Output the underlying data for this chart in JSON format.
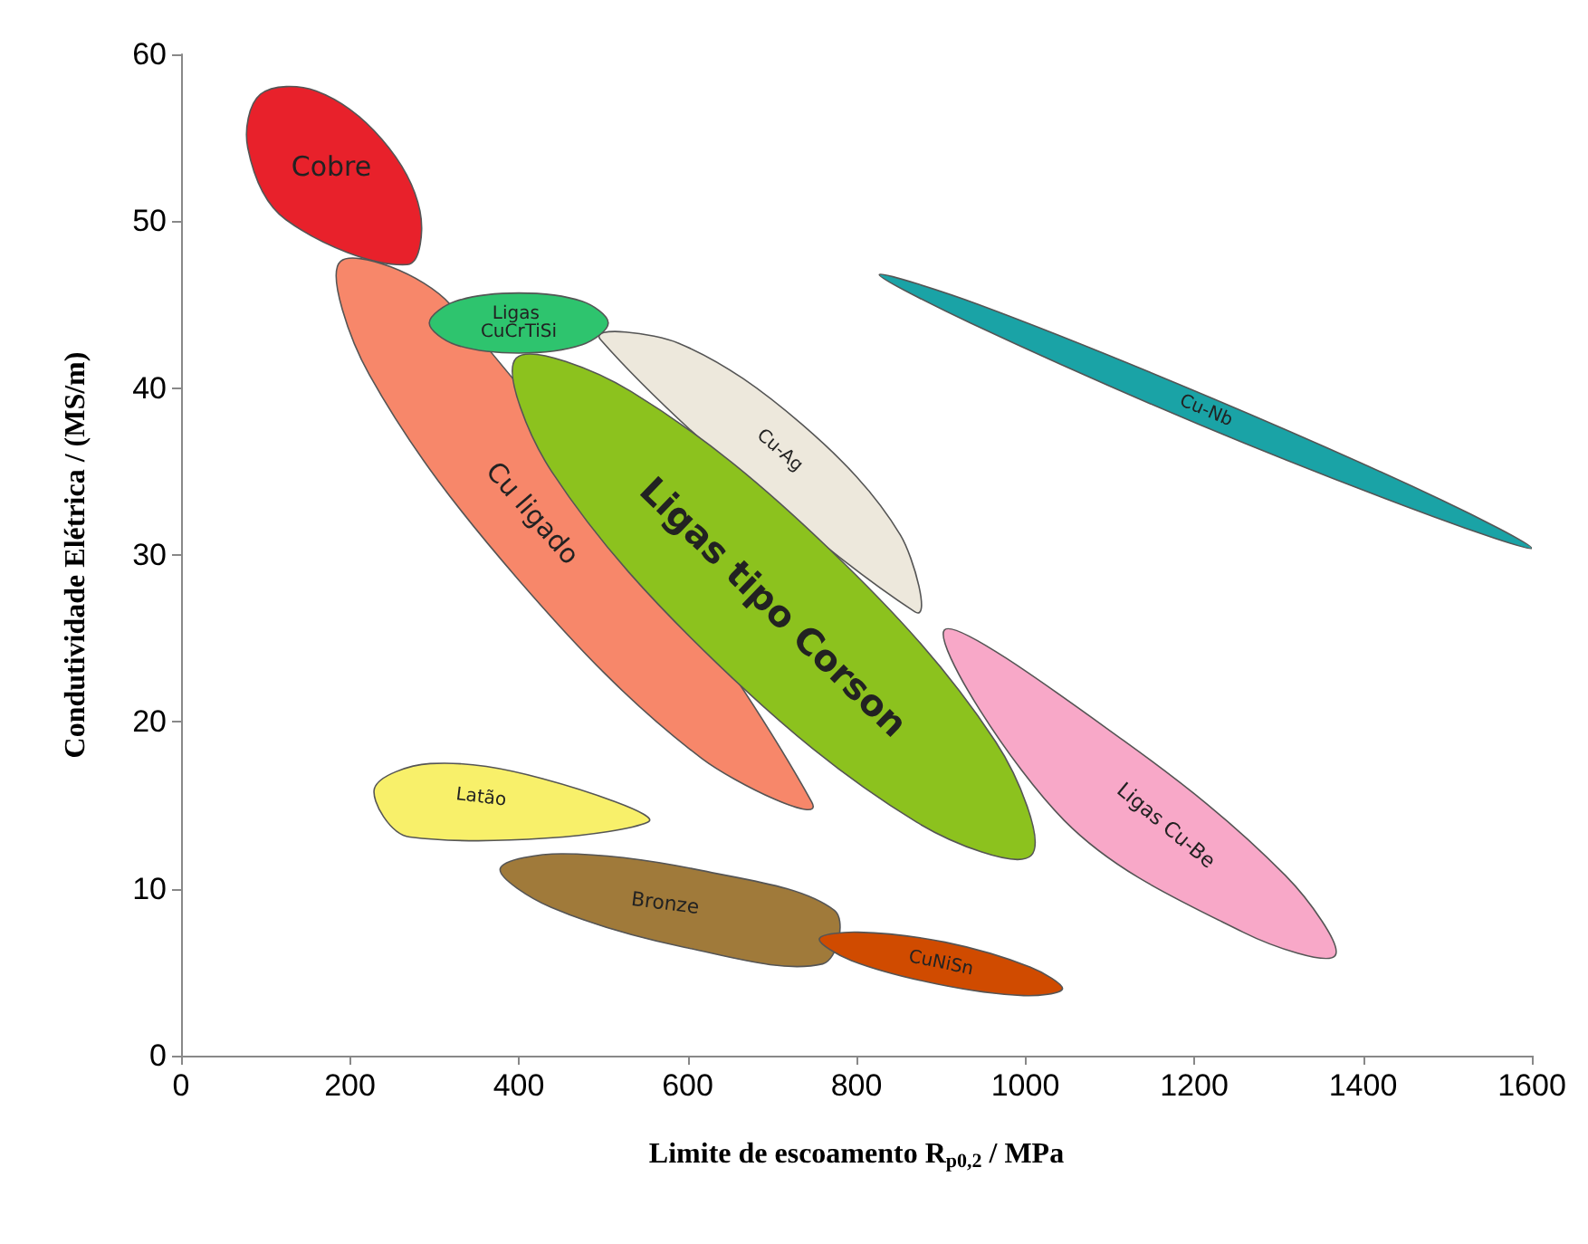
{
  "chart_data": {
    "type": "area",
    "xlabel": "Limite de escoamento R$_{p0,2}$ / MPa",
    "ylabel": "Condutividade Elétrica / (MS/m)",
    "xlim": [
      0,
      1600
    ],
    "xticks": [
      0,
      200,
      400,
      600,
      800,
      1000,
      1200,
      1400,
      1600
    ],
    "ylim": [
      0,
      60
    ],
    "yticks": [
      0,
      10,
      20,
      30,
      40,
      50,
      60
    ],
    "grid": false,
    "legend": false,
    "series": [
      {
        "name": "Cobre",
        "color": "#e8212b",
        "x": [
          94,
          160,
          238,
          283,
          268,
          null,
          124,
          79
        ],
        "values": [
          57.6,
          57.8,
          54.9,
          50.6,
          47.4,
          null,
          50.1,
          54.4
        ]
      },
      {
        "name": "Cu ligado",
        "color": "#f7876a",
        "x": [
          189,
          319,
          null,
          null,
          747,
          617,
          400,
          223
        ],
        "values": [
          47.6,
          45.0,
          null,
          null,
          15.2,
          17.8,
          28.5,
          40.8
        ]
      },
      {
        "name": "Ligas Cu-Be",
        "color": "#f8a8c8",
        "x": [
          null,
          904,
          1116,
          1308,
          1367,
          1258,
          1046,
          null
        ],
        "values": [
          null,
          25.5,
          18.9,
          10.8,
          6.0,
          7.4,
          14.1,
          null
        ]
      },
      {
        "name": "Cu-Ag",
        "color": "#ede8dc",
        "x": [
          497,
          589,
          736,
          852,
          869,
          null,
          null,
          null
        ],
        "values": [
          42.9,
          42.7,
          37.8,
          31.2,
          26.6,
          null,
          null,
          null
        ]
      },
      {
        "name": "Ligas tipo Corson",
        "color": "#8cc21e",
        "x": [
          397,
          533,
          769,
          965,
          1007,
          871,
          635,
          439
        ],
        "values": [
          41.8,
          39.8,
          30.3,
          18.8,
          12.0,
          14.0,
          23.5,
          35.0
        ]
      },
      {
        "name": "Ligas CuCrTiSi",
        "color": "#2ec46e",
        "x": [
          294,
          325,
          400,
          475,
          506,
          475,
          400,
          325
        ],
        "values": [
          43.9,
          45.2,
          45.7,
          45.2,
          43.9,
          42.6,
          42.1,
          42.6
        ]
      },
      {
        "name": "Cu-Nb",
        "color": "#1aa3a6",
        "x": [
          827,
          945,
          1221,
          1493,
          1600,
          1483,
          1207,
          935
        ],
        "values": [
          46.8,
          45.0,
          39.4,
          33.3,
          30.4,
          32.3,
          37.8,
          43.9
        ]
      },
      {
        "name": "Latão",
        "color": "#f8f06a",
        "x": [
          229,
          295,
          428,
          553,
          null,
          null,
          null,
          271
        ],
        "values": [
          16.0,
          17.5,
          16.6,
          14.0,
          null,
          null,
          null,
          13.1
        ]
      },
      {
        "name": "Bronze",
        "color": "#a07a3a",
        "x": [
          378,
          452,
          616,
          774,
          null,
          760,
          596,
          438
        ],
        "values": [
          11.2,
          12.1,
          11.1,
          8.7,
          null,
          5.5,
          6.5,
          8.9
        ]
      },
      {
        "name": "CuNiSn",
        "color": "#d04b00",
        "x": [
          756,
          802,
          905,
          1006,
          1044,
          998,
          895,
          794
        ],
        "values": [
          7.0,
          7.4,
          6.8,
          5.3,
          4.0,
          3.6,
          4.3,
          5.7
        ]
      }
    ]
  }
}
